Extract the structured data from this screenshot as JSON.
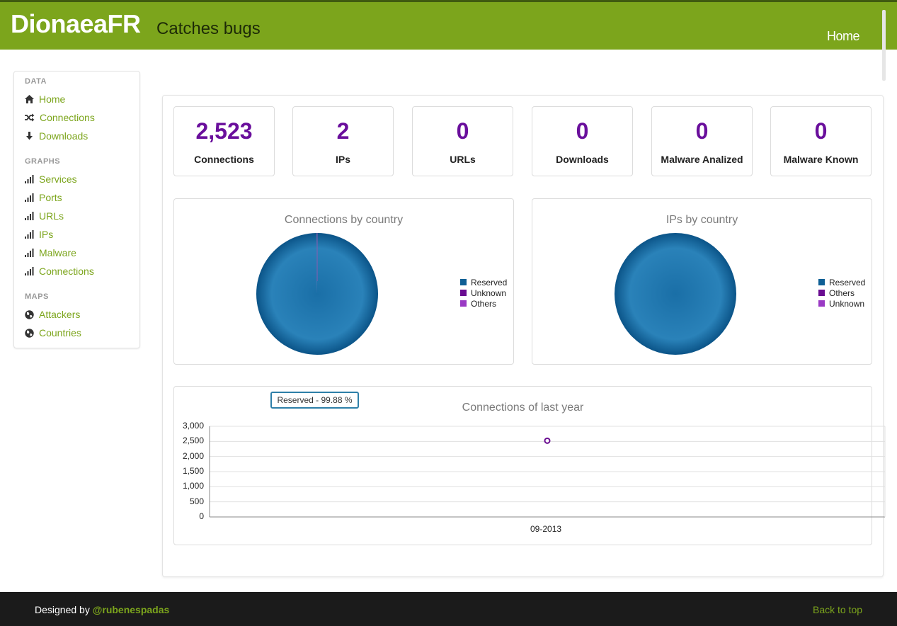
{
  "header": {
    "brand": "DionaeaFR",
    "tagline": "Catches bugs",
    "nav_home": "Home"
  },
  "sidebar": {
    "sections": [
      {
        "header": "DATA",
        "items": [
          {
            "label": "Home",
            "icon": "home-icon"
          },
          {
            "label": "Connections",
            "icon": "shuffle-icon"
          },
          {
            "label": "Downloads",
            "icon": "download-arrow-icon"
          }
        ]
      },
      {
        "header": "GRAPHS",
        "items": [
          {
            "label": "Services",
            "icon": "signal-bars-icon"
          },
          {
            "label": "Ports",
            "icon": "signal-bars-icon"
          },
          {
            "label": "URLs",
            "icon": "signal-bars-icon"
          },
          {
            "label": "IPs",
            "icon": "signal-bars-icon"
          },
          {
            "label": "Malware",
            "icon": "signal-bars-icon"
          },
          {
            "label": "Connections",
            "icon": "signal-bars-icon"
          }
        ]
      },
      {
        "header": "MAPS",
        "items": [
          {
            "label": "Attackers",
            "icon": "globe-icon"
          },
          {
            "label": "Countries",
            "icon": "globe-icon"
          }
        ]
      }
    ]
  },
  "stats": [
    {
      "value": "2,523",
      "label": "Connections"
    },
    {
      "value": "2",
      "label": "IPs"
    },
    {
      "value": "0",
      "label": "URLs"
    },
    {
      "value": "0",
      "label": "Downloads"
    },
    {
      "value": "0",
      "label": "Malware Analized"
    },
    {
      "value": "0",
      "label": "Malware Known"
    }
  ],
  "colors": {
    "brand_green": "#7ca51c",
    "stat_purple": "#6a0f9c",
    "reserved": "#0f5f95",
    "unknown": "#6a0d91",
    "others": "#9a3ac4"
  },
  "chart_data": [
    {
      "type": "pie",
      "title": "Connections by country",
      "categories": [
        "Reserved",
        "Unknown",
        "Others"
      ],
      "values": [
        99.88,
        0.08,
        0.04
      ],
      "legend": "right"
    },
    {
      "type": "pie",
      "title": "IPs by country",
      "categories": [
        "Reserved",
        "Others",
        "Unknown"
      ],
      "values": [
        100,
        0,
        0
      ],
      "legend": "right"
    },
    {
      "type": "line",
      "title": "Connections of last year",
      "x": [
        "09-2013"
      ],
      "y": [
        2523
      ],
      "ylim": [
        0,
        3000
      ],
      "yticks": [
        "3,000",
        "2,500",
        "2,000",
        "1,500",
        "1,000",
        "500",
        "0"
      ],
      "grid": true,
      "tooltip": "Reserved - 99.88 %"
    }
  ],
  "footer": {
    "designed_by": "Designed by",
    "author": "@rubenespadas",
    "back_to_top": "Back to top"
  }
}
